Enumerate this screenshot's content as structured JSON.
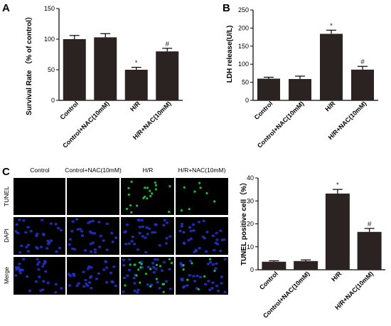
{
  "colors": {
    "bar": "#2b2222",
    "axis": "#000000",
    "micro_bg": "#000000",
    "dapi": "#2233cc",
    "tunel": "#22cc44"
  },
  "panel_letters": [
    "A",
    "B",
    "C"
  ],
  "micrograph": {
    "columns": [
      "Control",
      "Control+NAC(10mM)",
      "H/R",
      "H/R+NAC(10mM)"
    ],
    "rows": [
      "TUNEL",
      "DAPI",
      "Merge"
    ]
  },
  "chart_data": [
    {
      "type": "bar",
      "panel": "A",
      "categories": [
        "Control",
        "Control+NAC(10mM)",
        "H/R",
        "H/R+NAC(10mM)"
      ],
      "values": [
        100,
        103,
        50,
        80
      ],
      "errors": [
        6,
        6,
        4,
        5
      ],
      "annotations": [
        "",
        "",
        "*",
        "#"
      ],
      "ylabel": "Survival Rate （% of control）",
      "xlabel": "",
      "ylim": [
        0,
        150
      ],
      "yticks": [
        0,
        50,
        100,
        150
      ]
    },
    {
      "type": "bar",
      "panel": "B",
      "categories": [
        "Control",
        "Control+NAC(10mM)",
        "H/R",
        "H/R+NAC(10mM)"
      ],
      "values": [
        60,
        59,
        184,
        85
      ],
      "errors": [
        4,
        8,
        10,
        9
      ],
      "annotations": [
        "",
        "",
        "*",
        "#"
      ],
      "ylabel": "LDH release(U/L)",
      "xlabel": "",
      "ylim": [
        0,
        250
      ],
      "yticks": [
        0,
        50,
        100,
        150,
        200,
        250
      ]
    },
    {
      "type": "bar",
      "panel": "C",
      "categories": [
        "Control",
        "Control+NAC(10mM)",
        "H/R",
        "H/R+NAC(10mM)"
      ],
      "values": [
        3.5,
        3.8,
        33.2,
        16.5
      ],
      "errors": [
        0.4,
        0.5,
        1.8,
        1.5
      ],
      "annotations": [
        "",
        "",
        "*",
        "#"
      ],
      "ylabel": "TUNEL positive cell（%）",
      "xlabel": "",
      "ylim": [
        0,
        40
      ],
      "yticks": [
        0,
        10,
        20,
        30,
        40
      ]
    }
  ]
}
